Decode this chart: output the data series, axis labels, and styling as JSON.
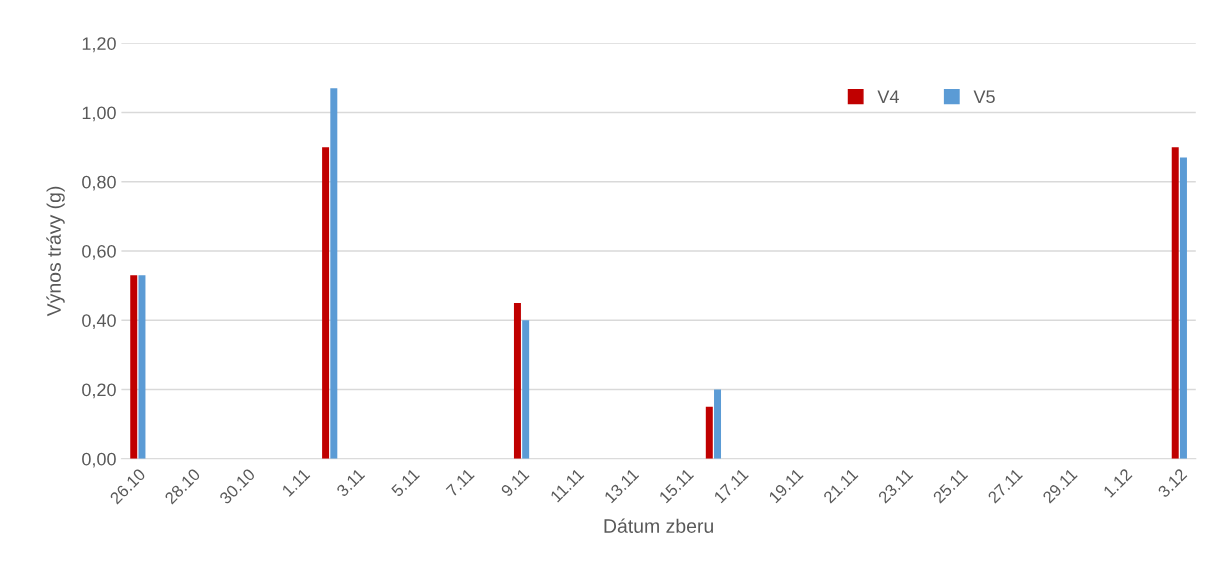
{
  "chart_data": {
    "type": "bar",
    "xlabel": "Dátum zberu",
    "ylabel": "Výnos trávy (g)",
    "categories": [
      "26.10",
      null,
      "28.10",
      null,
      "30.10",
      null,
      "1.11",
      null,
      "3.11",
      null,
      "5.11",
      null,
      "7.11",
      null,
      "9.11",
      null,
      "11.11",
      null,
      "13.11",
      null,
      "15.11",
      null,
      "17.11",
      null,
      "19.11",
      null,
      "21.11",
      null,
      "23.11",
      null,
      "25.11",
      null,
      "27.11",
      null,
      "29.11",
      null,
      "1.12",
      null,
      "3.12"
    ],
    "series": [
      {
        "name": "V4",
        "color": "#c00000",
        "values": [
          0.53,
          null,
          null,
          null,
          null,
          null,
          null,
          0.9,
          null,
          null,
          null,
          null,
          null,
          null,
          0.45,
          null,
          null,
          null,
          null,
          null,
          null,
          0.15,
          null,
          null,
          null,
          null,
          null,
          null,
          null,
          null,
          null,
          null,
          null,
          null,
          null,
          null,
          null,
          null,
          0.9
        ]
      },
      {
        "name": "V5",
        "color": "#5b9bd5",
        "values": [
          0.53,
          null,
          null,
          null,
          null,
          null,
          null,
          1.07,
          null,
          null,
          null,
          null,
          null,
          null,
          0.4,
          null,
          null,
          null,
          null,
          null,
          null,
          0.2,
          null,
          null,
          null,
          null,
          null,
          null,
          null,
          null,
          null,
          null,
          null,
          null,
          null,
          null,
          null,
          null,
          0.87
        ]
      }
    ],
    "ylim": [
      0,
      1.2
    ],
    "yticks": [
      {
        "value": 0,
        "label": "0,00"
      },
      {
        "value": 0.2,
        "label": "0,20"
      },
      {
        "value": 0.4,
        "label": "0,40"
      },
      {
        "value": 0.6,
        "label": "0,60"
      },
      {
        "value": 0.8,
        "label": "0,80"
      },
      {
        "value": 1.0,
        "label": "1,00"
      },
      {
        "value": 1.2,
        "label": "1,20"
      }
    ],
    "grid": "y",
    "legend": "top right"
  }
}
